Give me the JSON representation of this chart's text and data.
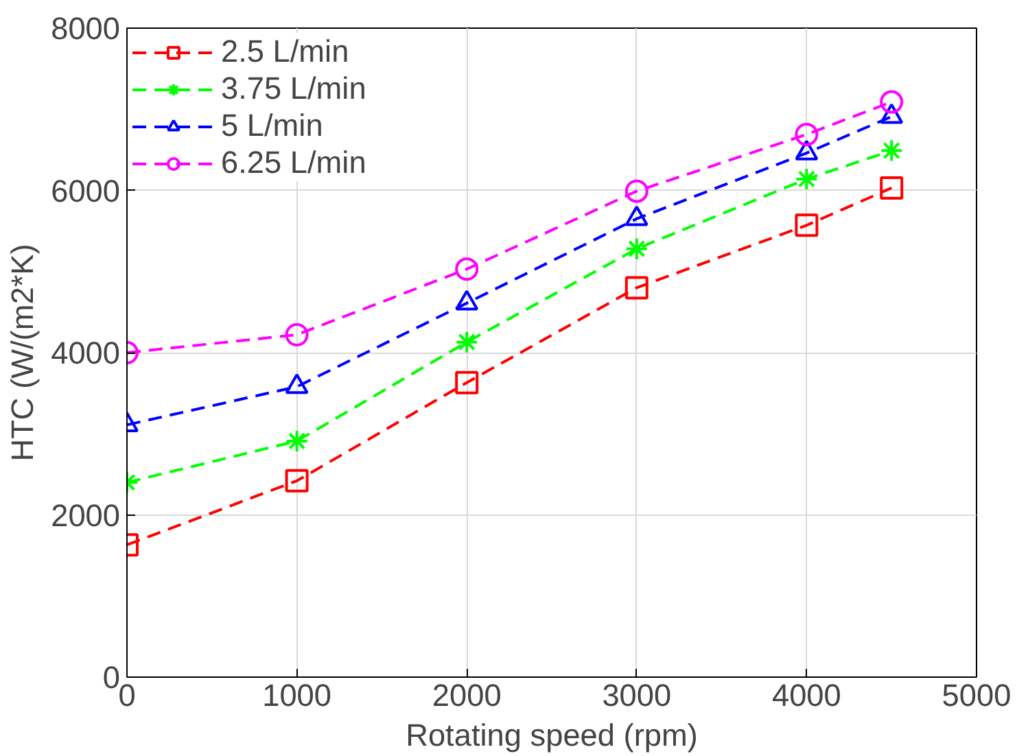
{
  "chart_data": {
    "type": "line",
    "xlabel": "Rotating speed (rpm)",
    "ylabel": "HTC (W/(m2*K)",
    "x": [
      0,
      1000,
      2000,
      3000,
      4000,
      4500
    ],
    "xlim": [
      0,
      5000
    ],
    "xticks": [
      0,
      1000,
      2000,
      3000,
      4000,
      5000
    ],
    "ylim": [
      0,
      8000
    ],
    "yticks": [
      0,
      2000,
      4000,
      6000,
      8000
    ],
    "grid": true,
    "legend": "top left",
    "line_style": "dashed",
    "series": [
      {
        "name": "2.5 L/min",
        "color": "#ff0000",
        "marker": "square",
        "values": [
          1630,
          2420,
          3630,
          4800,
          5570,
          6030
        ]
      },
      {
        "name": "3.75 L/min",
        "color": "#00ff00",
        "marker": "cross",
        "values": [
          2400,
          2910,
          4130,
          5280,
          6140,
          6490
        ]
      },
      {
        "name": "5 L/min",
        "color": "#0000ff",
        "marker": "triangle",
        "values": [
          3110,
          3580,
          4610,
          5650,
          6460,
          6910
        ]
      },
      {
        "name": "6.25 L/min",
        "color": "#ff00ff",
        "marker": "circle",
        "values": [
          4000,
          4220,
          5030,
          5990,
          6690,
          7090
        ]
      }
    ]
  }
}
